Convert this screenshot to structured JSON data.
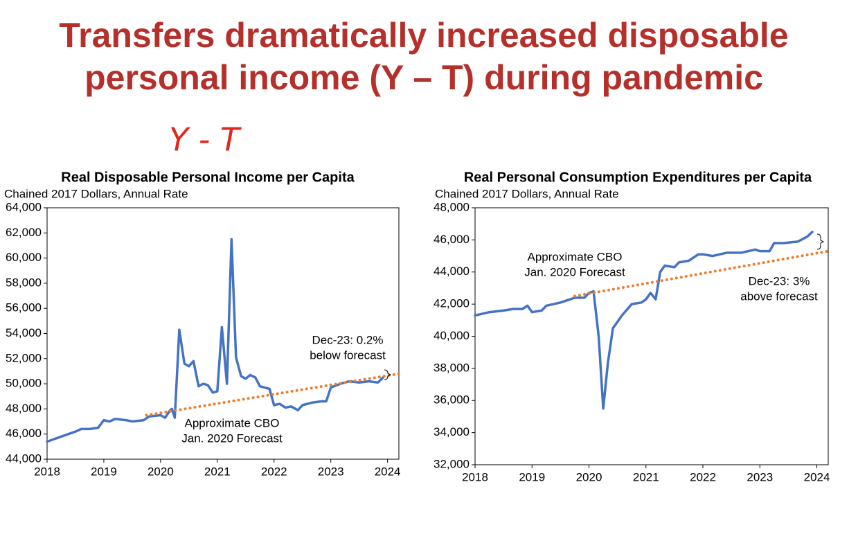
{
  "title": [
    "Transfers dramatically increased disposable",
    "personal income (Y – T) during pandemic"
  ],
  "handwritten_note": "Y - T",
  "chart_data": [
    {
      "type": "line",
      "title": "Real Disposable Personal Income per Capita",
      "subtitle": "Chained 2017 Dollars, Annual Rate",
      "xlim": [
        2018,
        2024.2
      ],
      "xticks": [
        2018,
        2019,
        2020,
        2021,
        2022,
        2023,
        2024
      ],
      "ylim": [
        44000,
        64000
      ],
      "yticks": [
        {
          "value": 44000,
          "label": "44,000"
        },
        {
          "value": 46000,
          "label": "46,000"
        },
        {
          "value": 48000,
          "label": "48,000"
        },
        {
          "value": 50000,
          "label": "50,000"
        },
        {
          "value": 52000,
          "label": "52,000"
        },
        {
          "value": 54000,
          "label": "54,000"
        },
        {
          "value": 56000,
          "label": "56,000"
        },
        {
          "value": 58000,
          "label": "58,000"
        },
        {
          "value": 60000,
          "label": "60,000"
        },
        {
          "value": 62000,
          "label": "62,000"
        },
        {
          "value": 64000,
          "label": "64,000"
        }
      ],
      "series": [
        {
          "color": "#4472c4",
          "style": "solid",
          "x": [
            2018.0,
            2018.25,
            2018.5,
            2018.6,
            2018.75,
            2018.9,
            2019.0,
            2019.1,
            2019.2,
            2019.4,
            2019.5,
            2019.7,
            2019.8,
            2020.0,
            2020.08,
            2020.17,
            2020.2,
            2020.25,
            2020.33,
            2020.42,
            2020.5,
            2020.58,
            2020.67,
            2020.75,
            2020.83,
            2020.92,
            2021.0,
            2021.08,
            2021.17,
            2021.25,
            2021.33,
            2021.42,
            2021.5,
            2021.58,
            2021.67,
            2021.75,
            2021.83,
            2021.92,
            2022.0,
            2022.1,
            2022.2,
            2022.3,
            2022.42,
            2022.5,
            2022.67,
            2022.83,
            2022.92,
            2023.0,
            2023.17,
            2023.33,
            2023.5,
            2023.67,
            2023.83,
            2023.92
          ],
          "values": [
            45400,
            45800,
            46200,
            46400,
            46400,
            46500,
            47100,
            47000,
            47200,
            47100,
            47000,
            47100,
            47400,
            47500,
            47300,
            47900,
            48000,
            47300,
            54300,
            51600,
            51400,
            51800,
            49800,
            50000,
            49900,
            49300,
            49400,
            54500,
            50000,
            61500,
            52100,
            50600,
            50400,
            50700,
            50500,
            49800,
            49700,
            49600,
            48300,
            48400,
            48100,
            48200,
            47900,
            48300,
            48500,
            48600,
            48600,
            49700,
            50000,
            50200,
            50100,
            50200,
            50100,
            50500
          ]
        },
        {
          "color": "#ed7d31",
          "style": "dotted",
          "x": [
            2019.75,
            2024.2
          ],
          "values": [
            47500,
            50800
          ]
        }
      ],
      "annotations": [
        {
          "lines": [
            "Approximate CBO",
            "Jan. 2020 Forecast"
          ],
          "color": "#ed7d31"
        },
        {
          "lines": [
            "Dec-23: 0.2%",
            "below forecast"
          ],
          "color": "#000000"
        }
      ]
    },
    {
      "type": "line",
      "title": "Real Personal Consumption Expenditures per Capita",
      "subtitle": "Chained 2017 Dollars, Annual Rate",
      "xlim": [
        2018,
        2024.2
      ],
      "xticks": [
        2018,
        2019,
        2020,
        2021,
        2022,
        2023,
        2024
      ],
      "ylim": [
        32000,
        48000
      ],
      "yticks": [
        {
          "value": 32000,
          "label": "32,000"
        },
        {
          "value": 34000,
          "label": "34,000"
        },
        {
          "value": 36000,
          "label": "36,000"
        },
        {
          "value": 38000,
          "label": "38,000"
        },
        {
          "value": 40000,
          "label": "40,000"
        },
        {
          "value": 42000,
          "label": "42,000"
        },
        {
          "value": 44000,
          "label": "44,000"
        },
        {
          "value": 46000,
          "label": "46,000"
        },
        {
          "value": 48000,
          "label": "48,000"
        }
      ],
      "series": [
        {
          "color": "#4472c4",
          "style": "solid",
          "x": [
            2018.0,
            2018.25,
            2018.5,
            2018.67,
            2018.83,
            2018.92,
            2019.0,
            2019.17,
            2019.25,
            2019.5,
            2019.75,
            2019.92,
            2020.0,
            2020.08,
            2020.17,
            2020.25,
            2020.33,
            2020.42,
            2020.58,
            2020.75,
            2020.92,
            2021.0,
            2021.08,
            2021.17,
            2021.25,
            2021.33,
            2021.5,
            2021.58,
            2021.75,
            2021.92,
            2022.0,
            2022.17,
            2022.42,
            2022.67,
            2022.92,
            2023.0,
            2023.17,
            2023.25,
            2023.42,
            2023.67,
            2023.83,
            2023.92
          ],
          "values": [
            41300,
            41500,
            41600,
            41700,
            41700,
            41900,
            41500,
            41600,
            41900,
            42100,
            42400,
            42400,
            42700,
            42800,
            40000,
            35500,
            38300,
            40500,
            41300,
            42000,
            42100,
            42300,
            42700,
            42300,
            44000,
            44400,
            44300,
            44600,
            44700,
            45100,
            45100,
            45000,
            45200,
            45200,
            45400,
            45300,
            45300,
            45800,
            45800,
            45900,
            46200,
            46500
          ]
        },
        {
          "color": "#ed7d31",
          "style": "dotted",
          "x": [
            2019.75,
            2024.2
          ],
          "values": [
            42500,
            45300
          ]
        }
      ],
      "annotations": [
        {
          "lines": [
            "Approximate CBO",
            "Jan. 2020 Forecast"
          ],
          "color": "#ed7d31"
        },
        {
          "lines": [
            "Dec-23: 3%",
            "above forecast"
          ],
          "color": "#000000"
        }
      ]
    }
  ]
}
